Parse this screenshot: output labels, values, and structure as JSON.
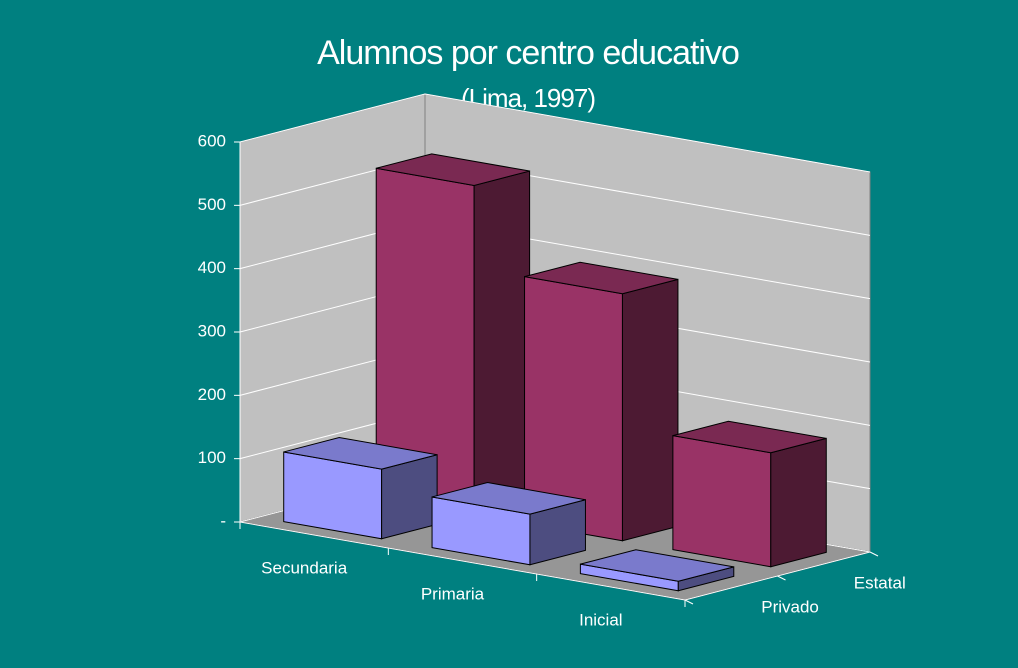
{
  "chart_data": {
    "type": "bar3d",
    "title": "Alumnos por centro educativo",
    "subtitle": "(Lima, 1997)",
    "categories": [
      "Secundaria",
      "Primaria",
      "Inicial"
    ],
    "series": [
      {
        "name": "Privado",
        "color": "#9999ff",
        "values": [
          110,
          80,
          15
        ]
      },
      {
        "name": "Estatal",
        "color": "#993366",
        "values": [
          520,
          390,
          180
        ]
      }
    ],
    "ylim": [
      0,
      600
    ],
    "yticks": [
      {
        "value": 0,
        "label": "-"
      },
      100,
      200,
      300,
      400,
      500,
      600
    ],
    "grid": true
  }
}
